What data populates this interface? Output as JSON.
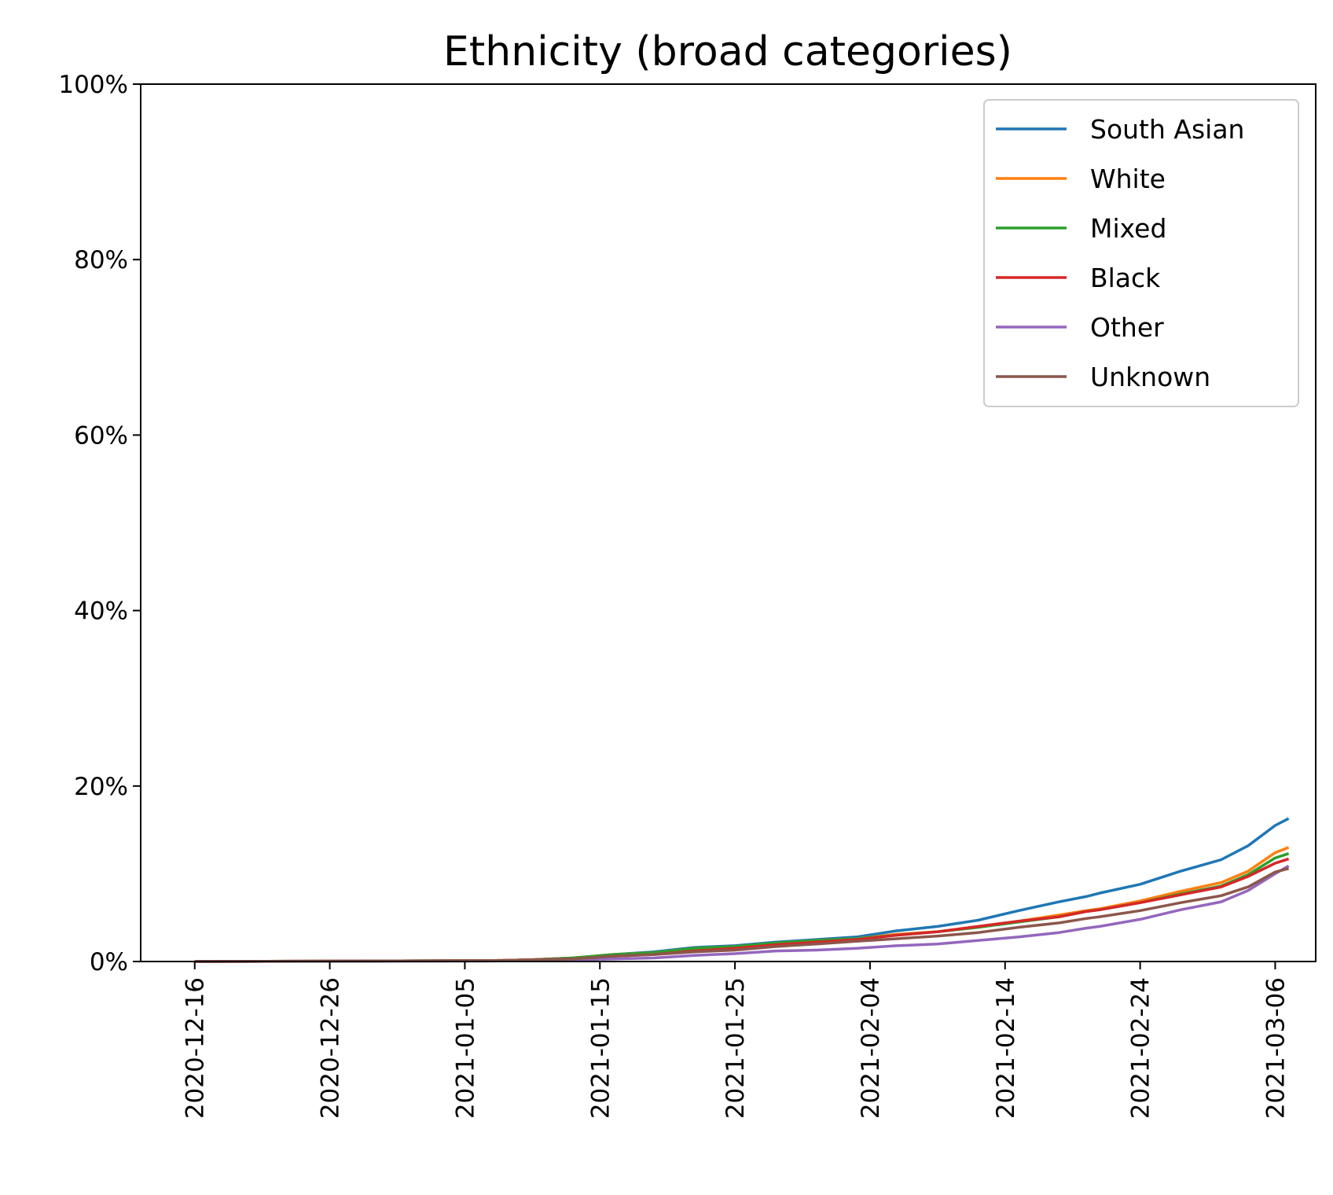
{
  "chart_data": {
    "type": "line",
    "title": "Ethnicity (broad categories)",
    "xlabel": "",
    "ylabel": "",
    "ylim": [
      0,
      100
    ],
    "y_unit": "%",
    "y_ticks": [
      "0%",
      "20%",
      "40%",
      "60%",
      "80%",
      "100%"
    ],
    "x_tick_labels": [
      "2020-12-16",
      "2020-12-26",
      "2021-01-05",
      "2021-01-15",
      "2021-01-25",
      "2021-02-04",
      "2021-02-14",
      "2021-02-24",
      "2021-03-06"
    ],
    "x_range": [
      "2020-12-12",
      "2021-03-09"
    ],
    "grid": false,
    "legend_position": "top-right",
    "x": [
      "2020-12-16",
      "2021-01-07",
      "2021-01-10",
      "2021-01-13",
      "2021-01-16",
      "2021-01-19",
      "2021-01-22",
      "2021-01-25",
      "2021-01-28",
      "2021-01-31",
      "2021-02-03",
      "2021-02-06",
      "2021-02-09",
      "2021-02-12",
      "2021-02-15",
      "2021-02-18",
      "2021-02-20",
      "2021-02-21",
      "2021-02-24",
      "2021-02-27",
      "2021-03-02",
      "2021-03-04",
      "2021-03-06",
      "2021-03-07"
    ],
    "series": [
      {
        "name": "South Asian",
        "color": "#1f77b4",
        "values": [
          0,
          0.1,
          0.2,
          0.4,
          0.8,
          1.1,
          1.6,
          1.8,
          2.2,
          2.5,
          2.8,
          3.5,
          4.0,
          4.7,
          5.8,
          6.8,
          7.4,
          7.8,
          8.8,
          10.3,
          11.6,
          13.2,
          15.5,
          16.3
        ]
      },
      {
        "name": "White",
        "color": "#ff7f0e",
        "values": [
          0,
          0.1,
          0.2,
          0.4,
          0.8,
          1.0,
          1.5,
          1.7,
          2.1,
          2.4,
          2.6,
          3.1,
          3.4,
          3.9,
          4.6,
          5.3,
          5.8,
          6.0,
          6.9,
          8.0,
          9.0,
          10.3,
          12.4,
          13.0
        ]
      },
      {
        "name": "Mixed",
        "color": "#2ca02c",
        "values": [
          0,
          0.1,
          0.2,
          0.4,
          0.8,
          1.0,
          1.5,
          1.7,
          2.1,
          2.4,
          2.6,
          3.0,
          3.4,
          3.9,
          4.5,
          5.1,
          5.7,
          5.9,
          6.7,
          7.7,
          8.6,
          9.9,
          11.8,
          12.3
        ]
      },
      {
        "name": "Black",
        "color": "#d62728",
        "values": [
          0,
          0.1,
          0.2,
          0.3,
          0.6,
          0.8,
          1.2,
          1.5,
          1.9,
          2.2,
          2.5,
          3.0,
          3.4,
          4.0,
          4.6,
          5.1,
          5.7,
          5.9,
          6.7,
          7.6,
          8.5,
          9.7,
          11.2,
          11.7
        ]
      },
      {
        "name": "Other",
        "color": "#9467bd",
        "values": [
          0,
          0.05,
          0.1,
          0.2,
          0.3,
          0.4,
          0.7,
          0.9,
          1.2,
          1.3,
          1.5,
          1.8,
          2.0,
          2.4,
          2.8,
          3.3,
          3.8,
          4.0,
          4.8,
          5.9,
          6.8,
          8.1,
          10.0,
          10.9
        ]
      },
      {
        "name": "Unknown",
        "color": "#8c564b",
        "values": [
          0,
          0.1,
          0.2,
          0.3,
          0.6,
          0.8,
          1.1,
          1.3,
          1.7,
          2.0,
          2.3,
          2.6,
          2.9,
          3.3,
          3.9,
          4.4,
          4.9,
          5.1,
          5.8,
          6.7,
          7.5,
          8.5,
          10.2,
          10.6
        ]
      }
    ]
  }
}
